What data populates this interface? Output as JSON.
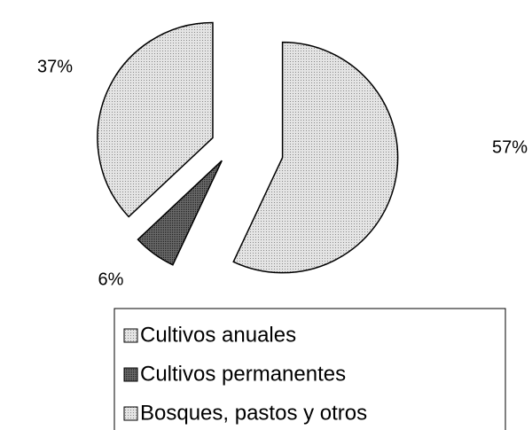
{
  "chart_data": {
    "type": "pie",
    "categories": [
      "Cultivos anuales",
      "Cultivos permanentes",
      "Bosques, pastos y otros"
    ],
    "values": [
      57,
      6,
      37
    ],
    "value_labels": [
      "57%",
      "6%",
      "37%"
    ],
    "colors": [
      "#d4d4d4",
      "#5a5a5a",
      "#d4d4d4"
    ],
    "legend": "bottom"
  }
}
